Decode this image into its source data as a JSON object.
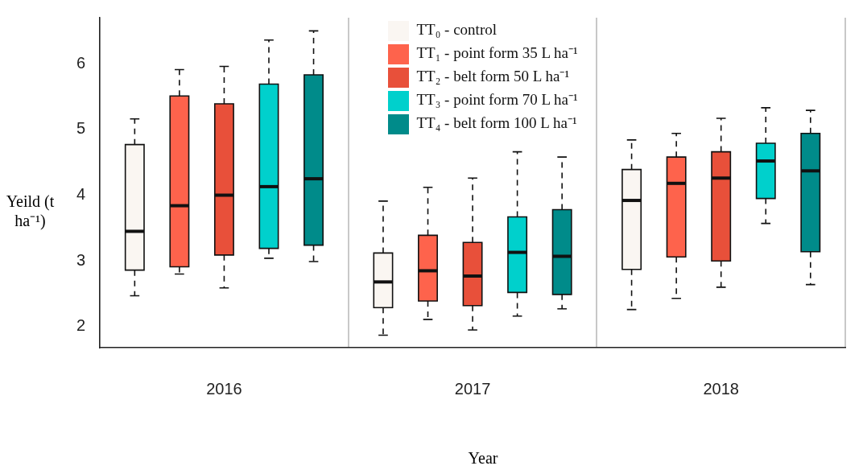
{
  "chart_data": {
    "type": "box",
    "xlabel": "Year",
    "ylabel": "Yeild (t ha⁻¹)",
    "categories": [
      "2016",
      "2017",
      "2018"
    ],
    "ylim": [
      1.68,
      6.7
    ],
    "yticks": [
      2,
      3,
      4,
      5,
      6
    ],
    "grid": "x",
    "legend": "top",
    "series": [
      {
        "name": "TT₀ - control",
        "color": "#faf6f2",
        "boxes": [
          {
            "low": 2.47,
            "q1": 2.86,
            "median": 3.45,
            "q3": 4.77,
            "high": 5.16
          },
          {
            "low": 1.87,
            "q1": 2.29,
            "median": 2.68,
            "q3": 3.12,
            "high": 3.91
          },
          {
            "low": 2.26,
            "q1": 2.87,
            "median": 3.92,
            "q3": 4.39,
            "high": 4.84
          }
        ]
      },
      {
        "name": "TT₁ - point form 35 L ha⁻¹",
        "color": "#fe634c",
        "boxes": [
          {
            "low": 2.8,
            "q1": 2.91,
            "median": 3.84,
            "q3": 5.51,
            "high": 5.91
          },
          {
            "low": 2.11,
            "q1": 2.39,
            "median": 2.85,
            "q3": 3.39,
            "high": 4.12
          },
          {
            "low": 2.43,
            "q1": 3.06,
            "median": 4.18,
            "q3": 4.58,
            "high": 4.94
          }
        ]
      },
      {
        "name": "TT₂ - belt form 50 L ha⁻¹",
        "color": "#e8503a",
        "boxes": [
          {
            "low": 2.59,
            "q1": 3.09,
            "median": 4.0,
            "q3": 5.39,
            "high": 5.96
          },
          {
            "low": 1.95,
            "q1": 2.32,
            "median": 2.77,
            "q3": 3.28,
            "high": 4.26
          },
          {
            "low": 2.6,
            "q1": 3.0,
            "median": 4.26,
            "q3": 4.66,
            "high": 5.17
          }
        ]
      },
      {
        "name": "TT₃ - point form 70 L ha⁻¹",
        "color": "#00d0cc",
        "boxes": [
          {
            "low": 3.04,
            "q1": 3.19,
            "median": 4.13,
            "q3": 5.69,
            "high": 6.36
          },
          {
            "low": 2.16,
            "q1": 2.52,
            "median": 3.13,
            "q3": 3.67,
            "high": 4.66
          },
          {
            "low": 3.57,
            "q1": 3.95,
            "median": 4.52,
            "q3": 4.79,
            "high": 5.33
          }
        ]
      },
      {
        "name": "TT₄ - belt form 100 L ha⁻¹",
        "color": "#008b8a",
        "boxes": [
          {
            "low": 2.99,
            "q1": 3.24,
            "median": 4.25,
            "q3": 5.83,
            "high": 6.5
          },
          {
            "low": 2.27,
            "q1": 2.49,
            "median": 3.07,
            "q3": 3.78,
            "high": 4.58
          },
          {
            "low": 2.64,
            "q1": 3.14,
            "median": 4.37,
            "q3": 4.94,
            "high": 5.29
          }
        ]
      }
    ]
  }
}
